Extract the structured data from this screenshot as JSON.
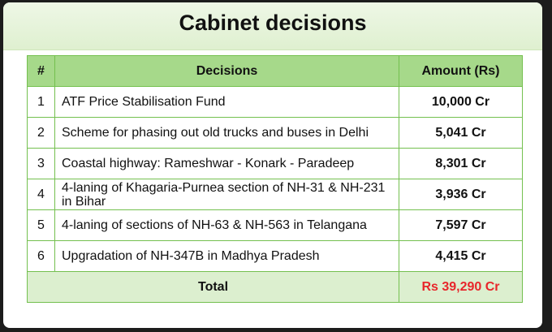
{
  "header": {
    "title": "Cabinet decisions"
  },
  "table": {
    "columns": [
      "#",
      "Decisions",
      "Amount (Rs)"
    ],
    "rows": [
      [
        "1",
        "ATF Price Stabilisation Fund",
        "10,000 Cr"
      ],
      [
        "2",
        "Scheme for phasing out old trucks and buses in Delhi",
        "5,041 Cr"
      ],
      [
        "3",
        "Coastal highway: Rameshwar - Konark - Paradeep",
        "8,301 Cr"
      ],
      [
        "4",
        "4-laning of Khagaria-Purnea section of NH-31 & NH-231 in Bihar",
        "3,936 Cr"
      ],
      [
        "5",
        "4-laning of sections of NH-63 & NH-563 in Telangana",
        "7,597 Cr"
      ],
      [
        "6",
        "Upgradation of NH-347B in Madhya Pradesh",
        "4,415 Cr"
      ]
    ],
    "total": [
      "Total",
      "Rs 39,290 Cr"
    ]
  }
}
